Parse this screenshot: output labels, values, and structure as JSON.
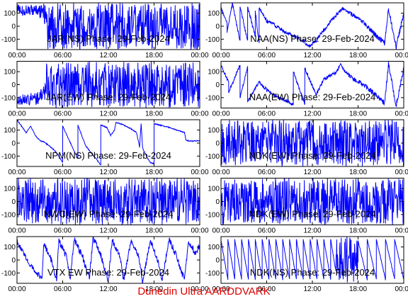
{
  "footer": "Dunedin Ultra AARDDVARK",
  "colors": {
    "trace": "#0000ff",
    "axes": "#000000",
    "footer": "#dd0000",
    "background": "#ffffff"
  },
  "chart_data": [
    {
      "type": "line",
      "title": "JAR(NS) Phase: 29-Feb-2024",
      "style": "noise",
      "xticks": [
        "00:00",
        "06:00",
        "12:00",
        "18:00",
        "00:00"
      ],
      "xlim": [
        0,
        24
      ],
      "yticks": [
        100,
        0,
        -100
      ],
      "ylim": [
        -180,
        180
      ],
      "x": [
        0.0,
        0.5,
        1.0,
        1.5,
        2.0,
        2.5,
        3.0,
        3.5,
        4.0,
        6.0,
        9.0,
        12.0,
        15.0,
        18.0,
        21.0,
        24.0
      ],
      "y": [
        130,
        125,
        120,
        130,
        125,
        130,
        110,
        120,
        0,
        0,
        0,
        0,
        0,
        0,
        0,
        0
      ],
      "amp": [
        40,
        40,
        40,
        40,
        40,
        40,
        50,
        60,
        180,
        180,
        180,
        180,
        180,
        180,
        180,
        180
      ]
    },
    {
      "type": "line",
      "title": "NAA(NS) Phase: 29-Feb-2024",
      "style": "line",
      "xticks": [
        "00:00",
        "06:00",
        "12:00",
        "18:00",
        "00:00"
      ],
      "xlim": [
        0,
        24
      ],
      "yticks": [
        100,
        0,
        -100
      ],
      "ylim": [
        -180,
        180
      ],
      "x": [
        0.0,
        0.8,
        0.8,
        1.5,
        2.5,
        2.5,
        3.5,
        3.5,
        4.5,
        4.5,
        5.0,
        5.0,
        6.0,
        7.0,
        8.0,
        9.0,
        10.0,
        11.0,
        11.5,
        12.5,
        13.5,
        15.0,
        16.0,
        17.0,
        18.5,
        19.5,
        20.5,
        21.5,
        22.0,
        23.0,
        24.0
      ],
      "y": [
        140,
        20,
        -50,
        180,
        -120,
        150,
        -110,
        150,
        -80,
        120,
        -140,
        140,
        40,
        10,
        -30,
        -60,
        -90,
        -120,
        -160,
        -110,
        -30,
        80,
        140,
        100,
        40,
        -20,
        -80,
        -130,
        130,
        -160,
        100
      ],
      "amp": [
        12,
        12,
        12,
        12,
        12,
        12,
        12,
        12,
        12,
        12,
        12,
        12,
        14,
        14,
        14,
        14,
        14,
        14,
        14,
        14,
        14,
        14,
        14,
        14,
        16,
        18,
        20,
        22,
        22,
        22,
        22
      ]
    },
    {
      "type": "line",
      "title": "JAR(EW) Phase: 29-Feb-2024",
      "style": "noise",
      "xticks": [
        "00:00",
        "06:00",
        "12:00",
        "18:00",
        "00:00"
      ],
      "xlim": [
        0,
        24
      ],
      "yticks": [
        100,
        0,
        -100
      ],
      "ylim": [
        -180,
        180
      ],
      "x": [
        0.0,
        1.0,
        2.0,
        3.0,
        3.5,
        3.6,
        6.0,
        12.0,
        18.0,
        24.0
      ],
      "y": [
        -120,
        -110,
        -110,
        -100,
        -60,
        0,
        0,
        0,
        0,
        0
      ],
      "amp": [
        40,
        40,
        50,
        50,
        60,
        180,
        180,
        180,
        180,
        180
      ]
    },
    {
      "type": "line",
      "title": "NAA(EW) Phase: 29-Feb-2024",
      "style": "line",
      "xticks": [
        "00:00",
        "06:00",
        "12:00",
        "18:00",
        "00:00"
      ],
      "xlim": [
        0,
        24
      ],
      "yticks": [
        100,
        0,
        -100
      ],
      "ylim": [
        -180,
        180
      ],
      "x": [
        0.0,
        1.0,
        1.0,
        2.5,
        2.5,
        3.5,
        3.5,
        5.0,
        6.0,
        7.0,
        8.0,
        9.5,
        9.5,
        11.0,
        11.0,
        12.5,
        13.5,
        15.0,
        15.8,
        16.0,
        17.0,
        18.5,
        19.5,
        20.5,
        21.5,
        22.0,
        23.0,
        24.0
      ],
      "y": [
        150,
        20,
        -60,
        150,
        -100,
        140,
        -130,
        20,
        -40,
        -80,
        -110,
        -150,
        100,
        -150,
        130,
        -80,
        40,
        90,
        160,
        120,
        60,
        10,
        -40,
        -90,
        -140,
        160,
        -160,
        120
      ],
      "amp": [
        12,
        12,
        12,
        12,
        12,
        12,
        12,
        12,
        14,
        14,
        14,
        14,
        14,
        14,
        14,
        14,
        14,
        14,
        14,
        14,
        16,
        18,
        20,
        22,
        22,
        22,
        22,
        22
      ]
    },
    {
      "type": "line",
      "title": "NPM(NS) Phase: 29-Feb-2024",
      "style": "line",
      "xticks": [
        "00:00",
        "06:00",
        "12:00",
        "18:00",
        "00:00"
      ],
      "xlim": [
        0,
        24
      ],
      "yticks": [
        100,
        0,
        -100
      ],
      "ylim": [
        -180,
        180
      ],
      "x": [
        0.0,
        0.6,
        1.2,
        1.8,
        2.4,
        3.0,
        3.5,
        4.2,
        5.0,
        5.5,
        6.0,
        6.0,
        7.5,
        8.0,
        8.0,
        9.0,
        10.5,
        11.0,
        11.0,
        11.8,
        12.3,
        12.8,
        13.0,
        14.0,
        15.0,
        15.7,
        16.1,
        16.3,
        16.5,
        17.0,
        17.5,
        18.0,
        18.0,
        20.0,
        21.0,
        22.0,
        22.2,
        23.0,
        24.0
      ],
      "y": [
        180,
        130,
        80,
        130,
        60,
        20,
        10,
        -20,
        -60,
        -100,
        -150,
        130,
        -60,
        -120,
        140,
        -20,
        -130,
        -170,
        140,
        120,
        60,
        100,
        160,
        140,
        110,
        80,
        -30,
        150,
        -40,
        -100,
        -150,
        -160,
        150,
        120,
        100,
        80,
        20,
        15,
        20
      ],
      "amp": [
        4,
        4,
        4,
        4,
        4,
        4,
        4,
        4,
        4,
        4,
        4,
        4,
        4,
        4,
        4,
        4,
        4,
        4,
        4,
        4,
        4,
        4,
        4,
        4,
        4,
        4,
        4,
        4,
        4,
        4,
        4,
        4,
        4,
        4,
        4,
        4,
        4,
        4,
        4
      ]
    },
    {
      "type": "line",
      "title": "NDK(EW) Phase: 29-Feb-2024",
      "style": "noise",
      "xticks": [
        "00:00",
        "06:00",
        "12:00",
        "18:00",
        "00:00"
      ],
      "xlim": [
        0,
        24
      ],
      "yticks": [
        100,
        0,
        -100
      ],
      "ylim": [
        -180,
        180
      ],
      "x": [
        0.0,
        6.0,
        12.0,
        18.0,
        24.0
      ],
      "y": [
        0,
        0,
        0,
        0,
        0
      ],
      "amp": [
        180,
        180,
        180,
        180,
        180
      ]
    },
    {
      "type": "line",
      "title": "NWC(EW) Phase: 29-Feb-2024",
      "style": "noise",
      "xticks": [
        "00:00",
        "06:00",
        "12:00",
        "18:00",
        "00:00"
      ],
      "xlim": [
        0,
        24
      ],
      "yticks": [
        100,
        0,
        -100
      ],
      "ylim": [
        -180,
        180
      ],
      "x": [
        0.0,
        6.0,
        12.0,
        18.0,
        24.0
      ],
      "y": [
        0,
        0,
        0,
        0,
        0
      ],
      "amp": [
        180,
        180,
        180,
        180,
        180
      ]
    },
    {
      "type": "line",
      "title": "NDK(EW) Phase: 29-Feb-2024",
      "style": "noise",
      "xticks": [
        "00:00",
        "06:00",
        "12:00",
        "18:00",
        "00:00"
      ],
      "xlim": [
        0,
        24
      ],
      "yticks": [
        100,
        0,
        -100
      ],
      "ylim": [
        -180,
        180
      ],
      "x": [
        0.0,
        6.0,
        12.0,
        18.0,
        24.0
      ],
      "y": [
        0,
        0,
        0,
        0,
        0
      ],
      "amp": [
        180,
        180,
        180,
        180,
        180
      ]
    },
    {
      "type": "line",
      "title": "VTX EW Phase: 29-Feb-2024",
      "style": "line",
      "xticks": [
        "00:00",
        "06:00",
        "12:00",
        "18:00",
        "00:00"
      ],
      "xlim": [
        0,
        24
      ],
      "yticks": [
        100,
        0,
        -100
      ],
      "ylim": [
        -180,
        180
      ],
      "x": [
        0.0,
        0.8,
        1.5,
        2.5,
        3.3,
        3.5,
        4.0,
        4.5,
        5.2,
        5.5,
        6.5,
        7.0,
        7.5,
        8.5,
        9.5,
        10.0,
        11.0,
        12.0,
        12.5,
        13.5,
        14.0,
        15.0,
        16.0,
        16.5,
        17.5,
        18.5,
        19.0,
        20.0,
        21.0,
        22.0,
        22.5,
        23.5,
        24.0
      ],
      "y": [
        140,
        60,
        -20,
        -90,
        -150,
        130,
        60,
        0,
        -160,
        150,
        20,
        -150,
        160,
        40,
        -140,
        170,
        40,
        -160,
        160,
        20,
        -160,
        160,
        30,
        -170,
        150,
        0,
        -170,
        160,
        20,
        -160,
        150,
        40,
        120
      ],
      "amp": [
        20,
        20,
        20,
        20,
        20,
        25,
        25,
        25,
        25,
        25,
        25,
        25,
        25,
        25,
        25,
        25,
        25,
        25,
        25,
        25,
        25,
        25,
        25,
        25,
        25,
        25,
        25,
        25,
        25,
        25,
        25,
        25,
        25
      ]
    },
    {
      "type": "line",
      "title": "NDK(NS) Phase: 29-Feb-2024",
      "style": "line",
      "xticks": [
        "00:00",
        "06:00",
        "12:00",
        "18:00",
        "00:00"
      ],
      "xlim": [
        0,
        24
      ],
      "yticks": [
        100,
        0,
        -100
      ],
      "ylim": [
        -180,
        180
      ],
      "x": [
        0.0,
        0.9,
        0.9,
        1.8,
        1.8,
        2.7,
        2.7,
        3.6,
        3.6,
        4.5,
        4.5,
        5.4,
        5.4,
        6.3,
        6.3,
        7.2,
        7.2,
        8.1,
        8.1,
        9.0,
        9.0,
        9.9,
        9.9,
        10.8,
        10.8,
        11.7,
        11.7,
        12.6,
        12.6,
        13.5,
        13.5,
        14.4,
        14.4,
        15.0,
        15.2,
        16.0,
        17.0,
        18.0,
        18.0,
        19.2,
        19.2,
        20.4,
        20.4,
        21.6,
        21.6,
        22.8,
        22.8,
        24.0
      ],
      "y": [
        150,
        -150,
        160,
        -150,
        160,
        -150,
        160,
        -150,
        160,
        -150,
        160,
        -150,
        160,
        -150,
        160,
        -150,
        160,
        -150,
        160,
        -150,
        160,
        -150,
        160,
        -150,
        160,
        -150,
        160,
        -150,
        160,
        -150,
        160,
        -150,
        160,
        -60,
        0,
        0,
        0,
        0,
        150,
        -150,
        160,
        -150,
        160,
        -150,
        160,
        -150,
        160,
        -150
      ],
      "amp": [
        5,
        5,
        5,
        5,
        5,
        5,
        5,
        5,
        5,
        5,
        5,
        5,
        5,
        5,
        5,
        5,
        5,
        5,
        5,
        5,
        5,
        5,
        5,
        5,
        5,
        5,
        5,
        5,
        5,
        5,
        5,
        5,
        5,
        5,
        180,
        180,
        180,
        180,
        6,
        6,
        6,
        6,
        6,
        6,
        6,
        6,
        6,
        6
      ]
    }
  ]
}
